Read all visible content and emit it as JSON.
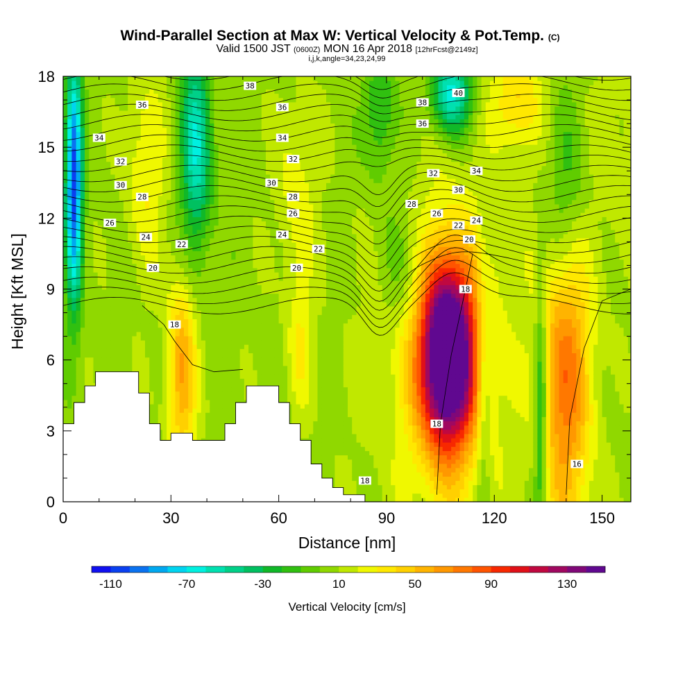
{
  "chart_data": {
    "type": "heatmap",
    "title": "Wind-Parallel Section at Max W: Vertical Velocity & Pot.Temp.",
    "title_unit": "(C)",
    "subtitle": {
      "pre": "Valid 1500 JST",
      "utc": "(0600Z)",
      "post": "MON 16 Apr 2018",
      "fcst": "[12hrFcst@2149z]"
    },
    "subtitle2": "i,j,k,angle=34,23,24,99",
    "xlabel": "Distance [nm]",
    "ylabel": "Height [Kft MSL]",
    "xlim": [
      0,
      158
    ],
    "ylim": [
      0,
      18
    ],
    "x_ticks": [
      0,
      30,
      60,
      90,
      120,
      150
    ],
    "y_ticks": [
      0,
      3,
      6,
      9,
      12,
      15,
      18
    ],
    "colorbar": {
      "label": "Vertical Velocity [cm/s]",
      "tick_labels": [
        "-110",
        "-70",
        "-30",
        "10",
        "50",
        "90",
        "130"
      ],
      "tick_values": [
        -110,
        -70,
        -30,
        10,
        50,
        90,
        130
      ],
      "min": -120,
      "max": 150,
      "colors": [
        "#1010f0",
        "#0a40f0",
        "#0a72f0",
        "#00a8f0",
        "#00d4f0",
        "#00f0e0",
        "#00e0b0",
        "#00d088",
        "#00c060",
        "#10b828",
        "#30c010",
        "#60cc00",
        "#90d800",
        "#c0e800",
        "#f0f800",
        "#ffe800",
        "#ffd000",
        "#ffb400",
        "#ff9800",
        "#ff7800",
        "#ff5400",
        "#f82800",
        "#e01018",
        "#c00840",
        "#a00860",
        "#800878",
        "#600890"
      ]
    },
    "w_features": [
      {
        "x": 107,
        "z": 6.2,
        "sx": 5.5,
        "sz": 2.8,
        "w": 175
      },
      {
        "x": 107,
        "z": 6.2,
        "sx": 14,
        "sz": 5.5,
        "w": 25
      },
      {
        "x": 33,
        "z": 5.5,
        "sx": 2.8,
        "sz": 2.8,
        "w": 55
      },
      {
        "x": 140,
        "z": 5.5,
        "sx": 5,
        "sz": 5,
        "w": 70
      },
      {
        "x": 66,
        "z": 6.5,
        "sx": 2.5,
        "sz": 2,
        "w": 22
      },
      {
        "x": 23,
        "z": 14,
        "sx": 4,
        "sz": 3,
        "w": 25
      },
      {
        "x": 126,
        "z": 17,
        "sx": 5,
        "sz": 1.5,
        "w": 35
      },
      {
        "x": 65,
        "z": 13,
        "sx": 4,
        "sz": 3,
        "w": 20
      },
      {
        "x": 3,
        "z": 13.5,
        "sx": 1.6,
        "sz": 3.5,
        "w": -115
      },
      {
        "x": 37,
        "z": 15,
        "sx": 3,
        "sz": 3,
        "w": -65
      },
      {
        "x": 88,
        "z": 16.5,
        "sx": 3,
        "sz": 2,
        "w": -30
      },
      {
        "x": 108,
        "z": 17.3,
        "sx": 4,
        "sz": 1.2,
        "w": -70
      },
      {
        "x": 133,
        "z": 4,
        "sx": 1.3,
        "sz": 4,
        "w": -45
      },
      {
        "x": 140,
        "z": 12.5,
        "sx": 4,
        "sz": 3,
        "w": -35
      },
      {
        "x": 117,
        "z": 5,
        "sx": 1.4,
        "sz": 4,
        "w": -25
      },
      {
        "x": 95,
        "z": 10,
        "sx": 5,
        "sz": 2,
        "w": -20
      },
      {
        "x": 155,
        "z": 15,
        "sx": 5,
        "sz": 4,
        "w": 10
      }
    ],
    "terrain": [
      {
        "x": 0,
        "h": 3.3
      },
      {
        "x": 3,
        "h": 4.2
      },
      {
        "x": 6,
        "h": 4.9
      },
      {
        "x": 9,
        "h": 5.5
      },
      {
        "x": 21,
        "h": 4.6
      },
      {
        "x": 24,
        "h": 3.3
      },
      {
        "x": 27,
        "h": 2.6
      },
      {
        "x": 30,
        "h": 2.9
      },
      {
        "x": 36,
        "h": 2.6
      },
      {
        "x": 45,
        "h": 3.3
      },
      {
        "x": 48,
        "h": 4.2
      },
      {
        "x": 51,
        "h": 4.9
      },
      {
        "x": 60,
        "h": 4.2
      },
      {
        "x": 63,
        "h": 3.3
      },
      {
        "x": 66,
        "h": 2.6
      },
      {
        "x": 69,
        "h": 1.6
      },
      {
        "x": 72,
        "h": 1.0
      },
      {
        "x": 75,
        "h": 0.6
      },
      {
        "x": 78,
        "h": 0.3
      },
      {
        "x": 84,
        "h": 0.3
      }
    ],
    "theta_contour_labels": [
      {
        "text": "38",
        "x": 52,
        "z": 17.6
      },
      {
        "text": "36",
        "x": 22,
        "z": 16.8
      },
      {
        "text": "36",
        "x": 61,
        "z": 16.7
      },
      {
        "text": "38",
        "x": 100,
        "z": 16.9
      },
      {
        "text": "40",
        "x": 110,
        "z": 17.3
      },
      {
        "text": "36",
        "x": 100,
        "z": 16.0
      },
      {
        "text": "34",
        "x": 10,
        "z": 15.4
      },
      {
        "text": "34",
        "x": 61,
        "z": 15.4
      },
      {
        "text": "32",
        "x": 16,
        "z": 14.4
      },
      {
        "text": "32",
        "x": 64,
        "z": 14.5
      },
      {
        "text": "32",
        "x": 103,
        "z": 13.9
      },
      {
        "text": "34",
        "x": 115,
        "z": 14.0
      },
      {
        "text": "30",
        "x": 16,
        "z": 13.4
      },
      {
        "text": "30",
        "x": 58,
        "z": 13.5
      },
      {
        "text": "30",
        "x": 110,
        "z": 13.2
      },
      {
        "text": "28",
        "x": 22,
        "z": 12.9
      },
      {
        "text": "28",
        "x": 64,
        "z": 12.9
      },
      {
        "text": "28",
        "x": 97,
        "z": 12.6
      },
      {
        "text": "26",
        "x": 13,
        "z": 11.8
      },
      {
        "text": "26",
        "x": 64,
        "z": 12.2
      },
      {
        "text": "26",
        "x": 104,
        "z": 12.2
      },
      {
        "text": "22",
        "x": 110,
        "z": 11.7
      },
      {
        "text": "24",
        "x": 115,
        "z": 11.9
      },
      {
        "text": "24",
        "x": 23,
        "z": 11.2
      },
      {
        "text": "24",
        "x": 61,
        "z": 11.3
      },
      {
        "text": "22",
        "x": 33,
        "z": 10.9
      },
      {
        "text": "22",
        "x": 71,
        "z": 10.7
      },
      {
        "text": "20",
        "x": 113,
        "z": 11.1
      },
      {
        "text": "20",
        "x": 25,
        "z": 9.9
      },
      {
        "text": "20",
        "x": 65,
        "z": 9.9
      },
      {
        "text": "18",
        "x": 31,
        "z": 7.5
      },
      {
        "text": "18",
        "x": 112,
        "z": 9.0
      },
      {
        "text": "18",
        "x": 104,
        "z": 3.3
      },
      {
        "text": "18",
        "x": 84,
        "z": 0.9
      },
      {
        "text": "16",
        "x": 143,
        "z": 1.6
      }
    ]
  }
}
